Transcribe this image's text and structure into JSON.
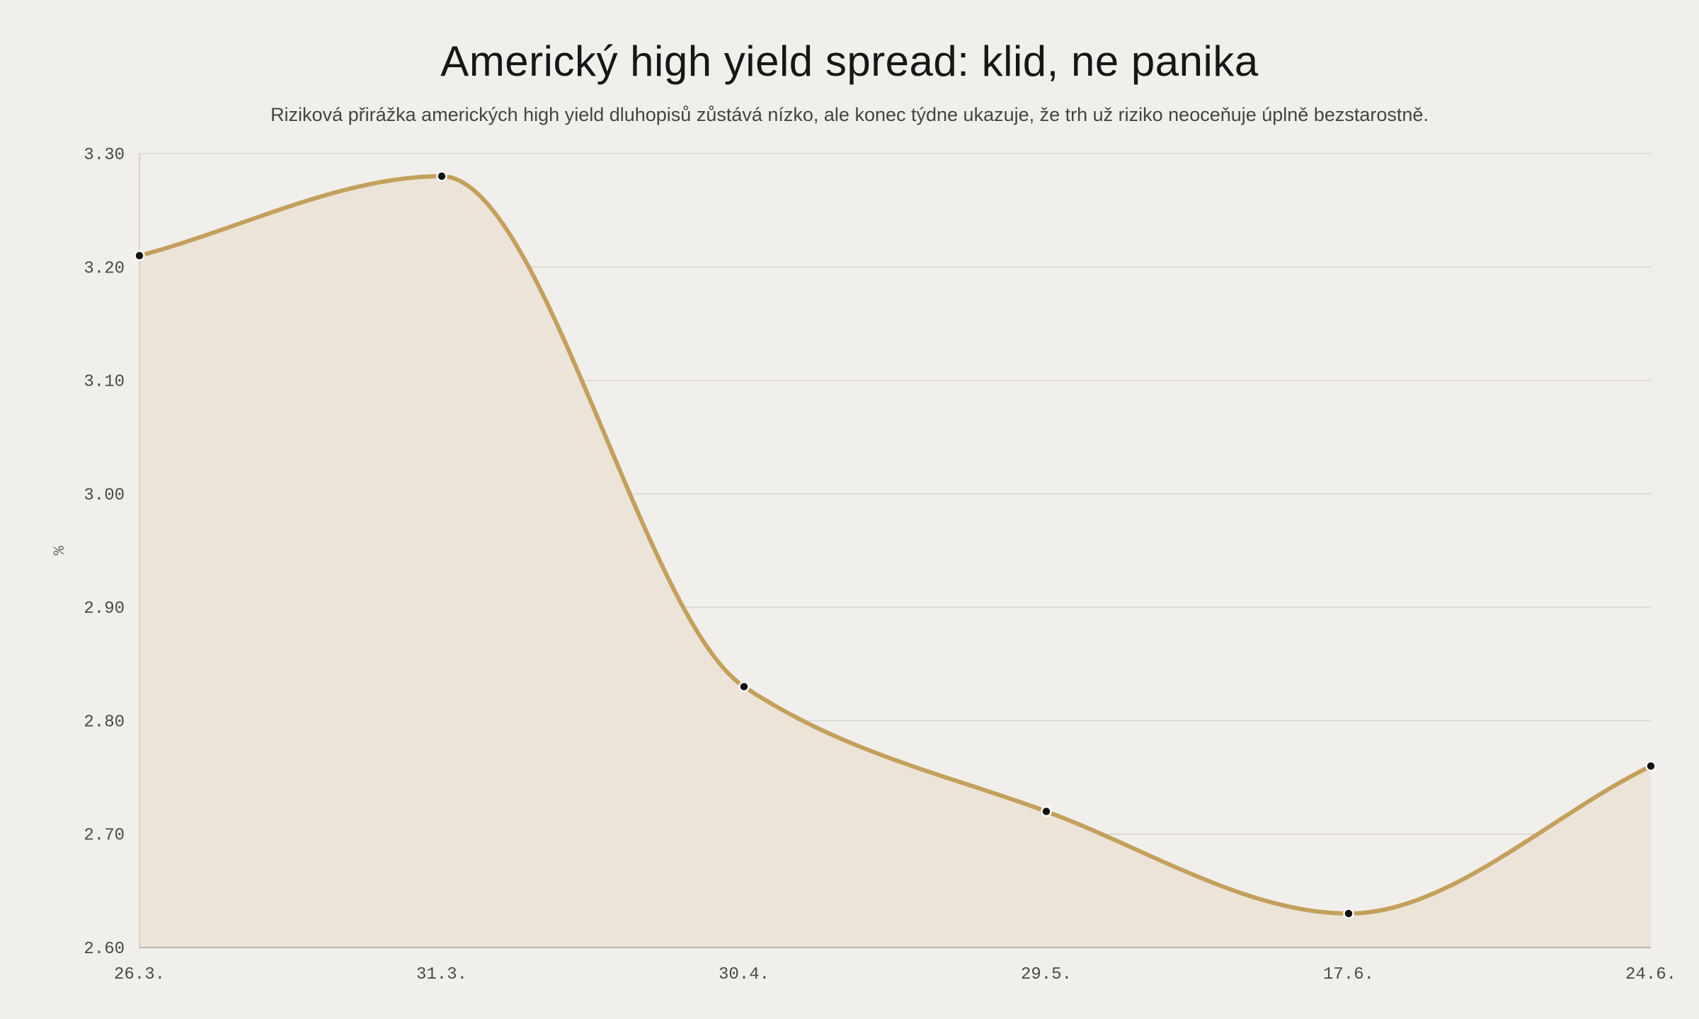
{
  "chart_data": {
    "type": "area",
    "title": "Americký high yield spread: klid, ne panika",
    "subtitle": "Riziková přirážka amerických high yield dluhopisů zůstává nízko, ale konec týdne ukazuje, že trh už riziko neoceňuje úplně bezstarostně.",
    "xlabel": "",
    "ylabel": "%",
    "categories": [
      "26.3.",
      "31.3.",
      "30.4.",
      "29.5.",
      "17.6.",
      "24.6."
    ],
    "series": [
      {
        "values": [
          3.21,
          3.28,
          2.83,
          2.72,
          2.63,
          2.76
        ]
      }
    ],
    "ylim": [
      2.6,
      3.3
    ],
    "yticks": [
      "2.60",
      "2.70",
      "2.80",
      "2.90",
      "3.00",
      "3.10",
      "3.20",
      "3.30"
    ],
    "grid": true,
    "legend": "none",
    "colors": {
      "line": "#c4a05c",
      "fill": "#ece4d8",
      "marker": "#111111",
      "grid": "#d9d5cd",
      "background": "#f1efeb"
    }
  }
}
